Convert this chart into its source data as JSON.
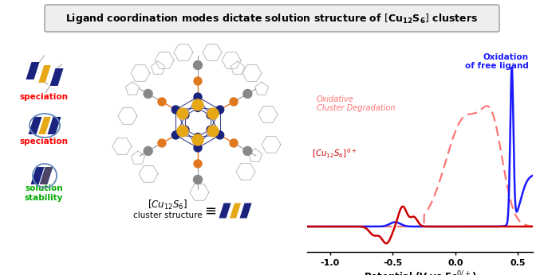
{
  "bg_color": "#ffffff",
  "navy": "#1a237e",
  "gold": "#e6a817",
  "gray_atom": "#888888",
  "orange_atom": "#e07820",
  "cv_blue": "#1a1aff",
  "cv_red": "#cc0000",
  "cv_red_dash": "#ff7070",
  "title_text": "Ligand coordination modes dictate solution structure of $[\\mathbf{Cu_{12}S_6}]$ clusters",
  "xlabel_text": "Potential (V vs Fc$^{0/+}$)",
  "xticks": [
    -1.0,
    -0.5,
    0.0,
    0.5
  ],
  "xtick_labels": [
    "-1.0",
    "-0.5",
    "0.0",
    "0.5"
  ],
  "xlim": [
    -1.18,
    0.62
  ],
  "ylim_cv": [
    -0.15,
    1.05
  ],
  "label_spec1": "speciation",
  "label_spec2": "speciation",
  "label_sol": "solution\nstability",
  "label_cluster": "$[Cu_{12}S_6]$\ncluster structure",
  "label_oxid": "Oxidation\nof free ligand",
  "label_degrad": "Oxidative\nCluster Degradation",
  "label_cu12": "$[Cu_{12}S_6]^{0+}$"
}
